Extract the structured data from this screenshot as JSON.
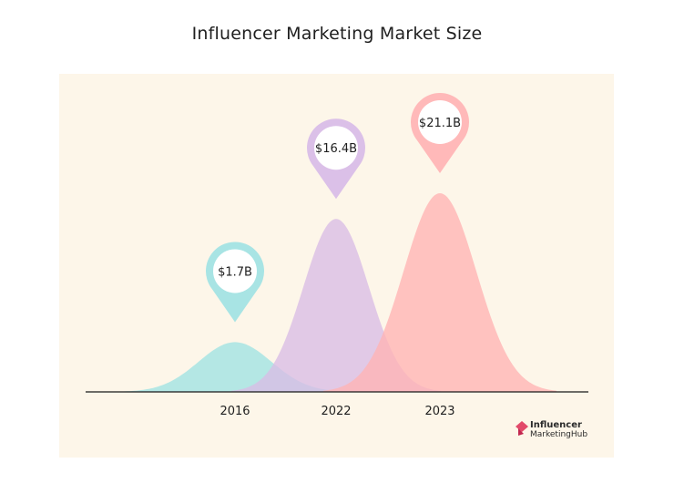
{
  "title": "Influencer Marketing Market Size",
  "logo": {
    "line1": "Influencer",
    "line2": "MarketingHub"
  },
  "chart_data": {
    "type": "area",
    "title": "Influencer Marketing Market Size",
    "xlabel": "",
    "ylabel": "",
    "categories": [
      "2016",
      "2022",
      "2023"
    ],
    "values": [
      1.7,
      16.4,
      21.1
    ],
    "value_labels": [
      "$1.7B",
      "$16.4B",
      "$21.1B"
    ],
    "colors": [
      "#9fe3e3",
      "#d9bde6",
      "#ffb4b4"
    ],
    "pin_colors": [
      "#a8e4e4",
      "#dbc0e8",
      "#ffb9b9"
    ],
    "grid": false,
    "legend": "none"
  }
}
